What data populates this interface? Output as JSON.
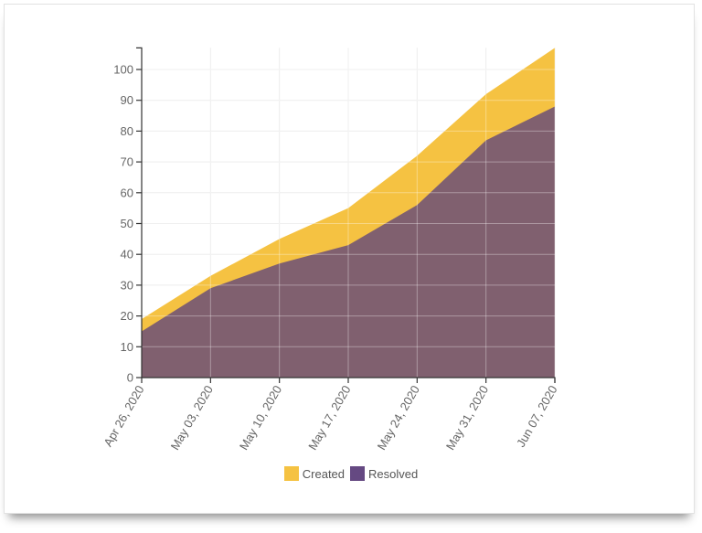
{
  "chart_data": {
    "type": "area",
    "stacked": false,
    "title": "",
    "xlabel": "",
    "ylabel": "",
    "categories": [
      "Apr 26, 2020",
      "May 03, 2020",
      "May 10, 2020",
      "May 17, 2020",
      "May 24, 2020",
      "May 31, 2020",
      "Jun 07, 2020"
    ],
    "series": [
      {
        "name": "Created",
        "color": "#f5c242",
        "values": [
          19,
          33,
          45,
          55,
          72,
          92,
          107
        ]
      },
      {
        "name": "Resolved",
        "color": "#654982",
        "values": [
          15,
          29,
          37,
          43,
          56,
          77,
          88
        ]
      }
    ],
    "yticks": [
      0,
      10,
      20,
      30,
      40,
      50,
      60,
      70,
      80,
      90,
      100
    ],
    "ylim": [
      0,
      107
    ],
    "grid": true,
    "legend_position": "bottom"
  },
  "legend": {
    "created_label": "Created",
    "resolved_label": "Resolved",
    "created_color": "#f5c242",
    "resolved_color": "#654982"
  }
}
